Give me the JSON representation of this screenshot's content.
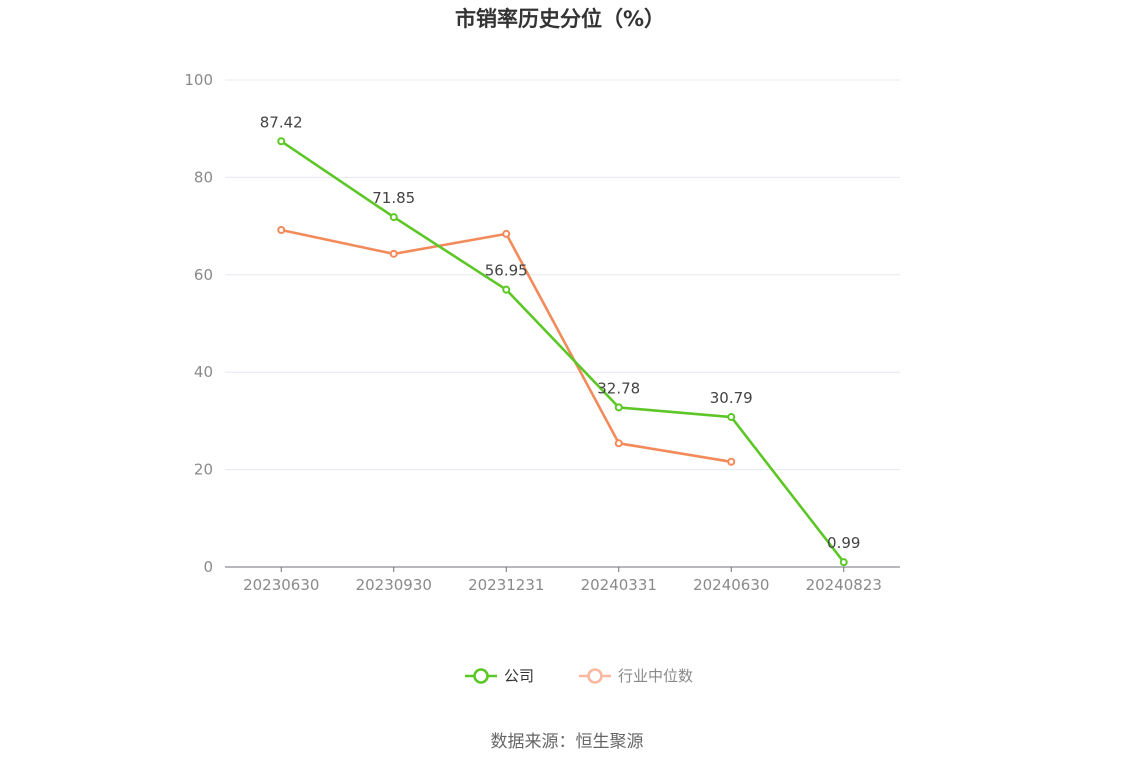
{
  "chart_data": {
    "type": "line",
    "title": "市销率历史分位（%）",
    "categories": [
      "20230630",
      "20230930",
      "20231231",
      "20240331",
      "20240630",
      "20240823"
    ],
    "ylim": [
      0,
      100
    ],
    "yticks": [
      0,
      20,
      40,
      60,
      80,
      100
    ],
    "grid": true,
    "legend_position": "bottom",
    "series": [
      {
        "name": "公司",
        "color": "#5cc726",
        "values": [
          87.42,
          71.85,
          56.95,
          32.78,
          30.79,
          0.99
        ],
        "labels": [
          "87.42",
          "71.85",
          "56.95",
          "32.78",
          "30.79",
          "0.99"
        ]
      },
      {
        "name": "行业中位数",
        "color": "#f28a5a",
        "legend_color": "#f9b9a0",
        "values": [
          69.2,
          64.3,
          68.4,
          25.4,
          21.6,
          null
        ]
      }
    ]
  },
  "source": "数据来源：恒生聚源"
}
